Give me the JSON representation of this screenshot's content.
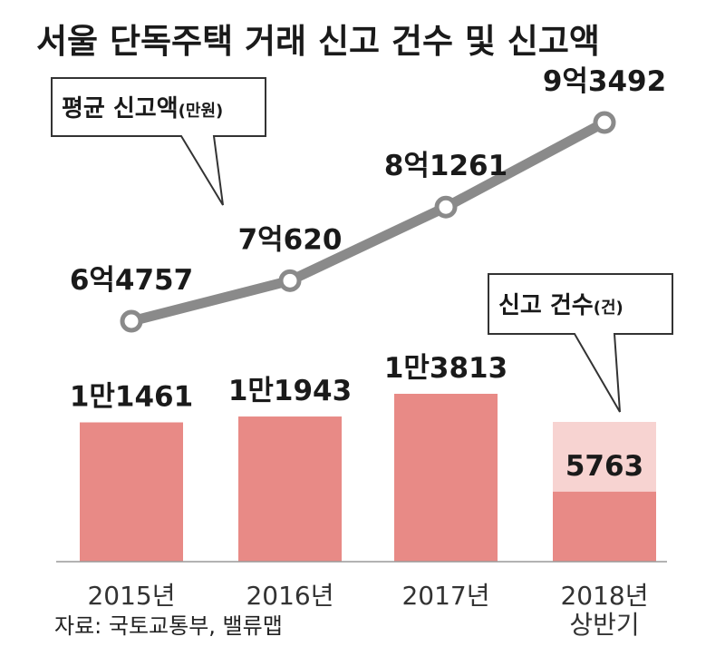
{
  "title": "서울 단독주택 거래 신고 건수 및 신고액",
  "source": "자료: 국토교통부, 밸류맵",
  "colors": {
    "bar": "#e88a86",
    "bar_partial_remainder": "#f7d3d1",
    "line": "#8a8a8a",
    "marker_fill": "#ffffff",
    "text": "#1a1a1a"
  },
  "chart_data": {
    "type": "bar+line",
    "categories": [
      "2015년",
      "2016년",
      "2017년",
      "2018년 상반기"
    ],
    "category_lines": [
      [
        "2015년"
      ],
      [
        "2016년"
      ],
      [
        "2017년"
      ],
      [
        "2018년",
        "상반기"
      ]
    ],
    "bar_series": {
      "name": "신고 건수",
      "unit": "(건)",
      "values": [
        11461,
        11943,
        13813,
        5763
      ],
      "labels": [
        "1만1461",
        "1만1943",
        "1만3813",
        "5763"
      ]
    },
    "line_series": {
      "name": "평균 신고액",
      "unit": "(만원)",
      "values": [
        64757,
        70620,
        81261,
        93492
      ],
      "labels": [
        "6억4757",
        "7억620",
        "8억1261",
        "9억3492"
      ]
    },
    "legend": {
      "line_callout_main": "평균 신고액",
      "line_callout_unit": "(만원)",
      "bar_callout_main": "신고 건수",
      "bar_callout_unit": "(건)"
    }
  }
}
